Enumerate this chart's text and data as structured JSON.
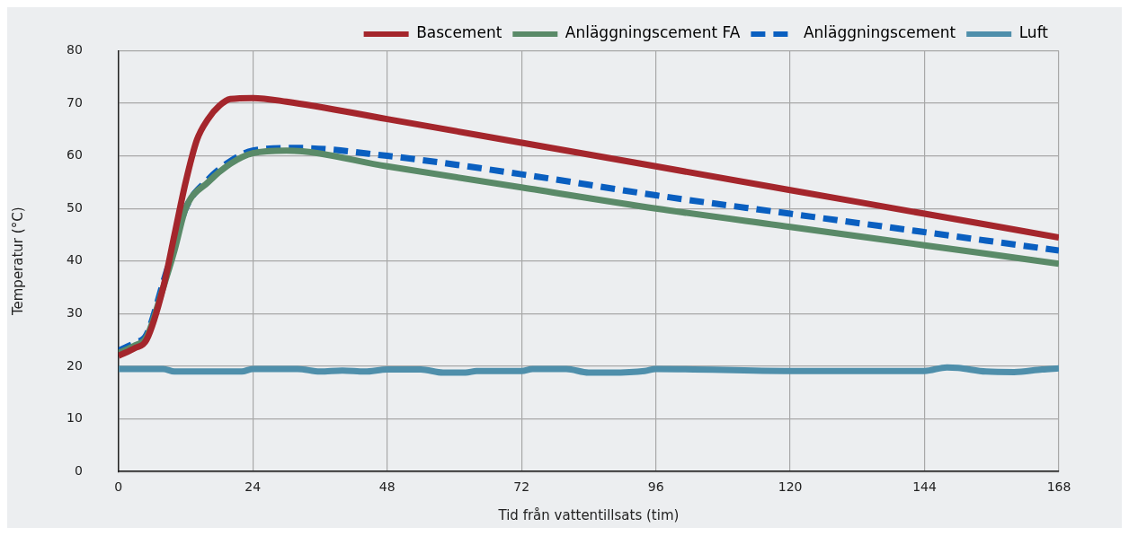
{
  "chart_data": {
    "type": "line",
    "xlabel": "Tid från vattentillsats (tim)",
    "ylabel": "Temperatur (°C)",
    "xlim": [
      0,
      168
    ],
    "xticks": [
      0,
      24,
      48,
      72,
      96,
      120,
      144,
      168
    ],
    "ylim": [
      0,
      80
    ],
    "yticks": [
      0,
      10,
      20,
      30,
      40,
      50,
      60,
      70,
      80
    ],
    "grid": true,
    "legend": "top right",
    "marker": "none",
    "series": [
      {
        "name": "Bascement",
        "color": "#a4262c",
        "line_style": "solid",
        "x": [
          0,
          3,
          5,
          8,
          10,
          12,
          14,
          16,
          18,
          20,
          24,
          30,
          48,
          72,
          96,
          120,
          144,
          168
        ],
        "values": [
          22,
          23.5,
          25,
          35,
          45,
          55,
          63,
          67,
          69.5,
          70.8,
          71,
          70.3,
          67,
          62.5,
          58,
          53.5,
          49,
          44.5
        ]
      },
      {
        "name": "Anläggningscement FA",
        "color": "#5a8a68",
        "line_style": "solid",
        "x": [
          0,
          3,
          5,
          8,
          10,
          12,
          16,
          20,
          24,
          30,
          48,
          72,
          96,
          120,
          144,
          168
        ],
        "values": [
          22.5,
          24,
          25.5,
          35,
          42,
          50,
          55,
          58.5,
          60.5,
          61,
          58,
          54,
          50,
          46.5,
          43,
          39.5
        ]
      },
      {
        "name": "Anläggningscement",
        "color": "#0a5fc0",
        "line_style": "dashed",
        "x": [
          0,
          3,
          5,
          8,
          10,
          12,
          16,
          20,
          24,
          32,
          48,
          72,
          96,
          120,
          144,
          168
        ],
        "values": [
          23,
          24.5,
          26,
          36,
          43,
          50,
          55.5,
          59,
          61,
          61.5,
          60,
          56.5,
          52.5,
          49,
          45.5,
          42
        ]
      },
      {
        "name": "Luft",
        "color": "#4f8fab",
        "line_style": "solid",
        "x": [
          0,
          8,
          10,
          22,
          24,
          32,
          36,
          40,
          44,
          48,
          54,
          58,
          62,
          64,
          72,
          74,
          80,
          84,
          88,
          94,
          96,
          120,
          144,
          148,
          150,
          155,
          160,
          165,
          168
        ],
        "values": [
          19.5,
          19.5,
          19,
          19,
          19.5,
          19.5,
          19,
          19.2,
          19,
          19.4,
          19.4,
          18.8,
          18.8,
          19.1,
          19.1,
          19.5,
          19.5,
          18.8,
          18.8,
          19.1,
          19.5,
          19.1,
          19.1,
          19.8,
          19.7,
          19,
          18.9,
          19.4,
          19.6
        ]
      }
    ]
  }
}
